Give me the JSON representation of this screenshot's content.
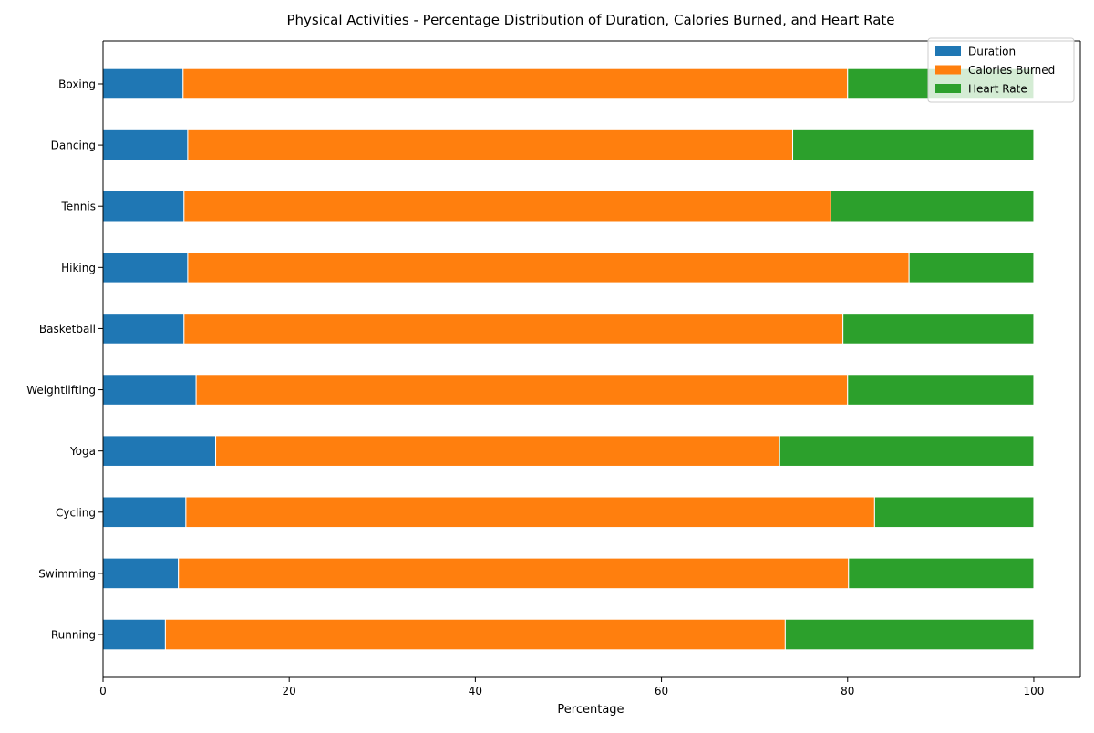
{
  "chart_data": {
    "type": "bar",
    "orientation": "horizontal",
    "stacked": true,
    "title": "Physical Activities - Percentage Distribution of Duration, Calories Burned, and Heart Rate",
    "xlabel": "Percentage",
    "ylabel": "",
    "xlim": [
      0,
      105
    ],
    "xticks": [
      0,
      20,
      40,
      60,
      80,
      100
    ],
    "grid": false,
    "legend_position": "top-right",
    "categories": [
      "Running",
      "Swimming",
      "Cycling",
      "Yoga",
      "Weightlifting",
      "Basketball",
      "Hiking",
      "Tennis",
      "Dancing",
      "Boxing"
    ],
    "series": [
      {
        "name": "Duration",
        "color": "#1f77b4",
        "values": [
          6.7,
          8.1,
          8.9,
          12.1,
          10.0,
          8.7,
          9.1,
          8.7,
          9.1,
          8.6
        ]
      },
      {
        "name": "Calories Burned",
        "color": "#ff7f0e",
        "values": [
          66.6,
          72.0,
          74.0,
          60.6,
          70.0,
          70.8,
          77.5,
          69.5,
          65.0,
          71.4
        ]
      },
      {
        "name": "Heart Rate",
        "color": "#2ca02c",
        "values": [
          26.7,
          19.9,
          17.1,
          27.3,
          20.0,
          20.5,
          13.4,
          21.8,
          25.9,
          20.0
        ]
      }
    ]
  }
}
